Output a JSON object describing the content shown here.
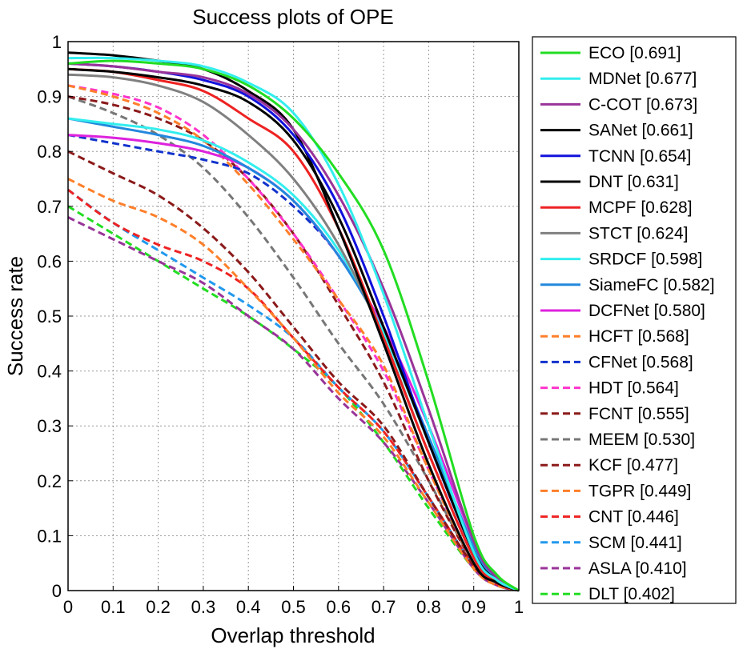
{
  "chart_data": {
    "type": "line",
    "title": "Success plots of OPE",
    "xlabel": "Overlap threshold",
    "ylabel": "Success rate",
    "xlim": [
      0,
      1
    ],
    "ylim": [
      0,
      1
    ],
    "xticks": [
      "0",
      "0.1",
      "0.2",
      "0.3",
      "0.4",
      "0.5",
      "0.6",
      "0.7",
      "0.8",
      "0.9",
      "1"
    ],
    "yticks": [
      "0",
      "0.1",
      "0.2",
      "0.3",
      "0.4",
      "0.5",
      "0.6",
      "0.7",
      "0.8",
      "0.9",
      "1"
    ],
    "grid": true,
    "legend_position": "outside-right",
    "x": [
      0,
      0.1,
      0.2,
      0.3,
      0.4,
      0.5,
      0.6,
      0.7,
      0.8,
      0.9,
      0.95,
      1.0
    ],
    "series": [
      {
        "name": "ECO [0.691]",
        "color": "#22dd22",
        "dash": "solid",
        "values": [
          0.96,
          0.965,
          0.96,
          0.95,
          0.92,
          0.86,
          0.76,
          0.62,
          0.38,
          0.1,
          0.03,
          0.0
        ]
      },
      {
        "name": "MDNet [0.677]",
        "color": "#33eeee",
        "dash": "solid",
        "values": [
          0.97,
          0.97,
          0.965,
          0.955,
          0.925,
          0.87,
          0.74,
          0.54,
          0.3,
          0.07,
          0.02,
          0.0
        ]
      },
      {
        "name": "C-COT [0.673]",
        "color": "#993399",
        "dash": "solid",
        "values": [
          0.96,
          0.955,
          0.945,
          0.935,
          0.905,
          0.84,
          0.72,
          0.55,
          0.33,
          0.09,
          0.025,
          0.0
        ]
      },
      {
        "name": "SANet [0.661]",
        "color": "#000000",
        "dash": "solid",
        "values": [
          0.95,
          0.945,
          0.935,
          0.92,
          0.89,
          0.82,
          0.68,
          0.48,
          0.27,
          0.07,
          0.02,
          0.0
        ]
      },
      {
        "name": "TCNN [0.654]",
        "color": "#1111dd",
        "dash": "solid",
        "values": [
          0.96,
          0.955,
          0.945,
          0.93,
          0.9,
          0.83,
          0.7,
          0.5,
          0.27,
          0.07,
          0.02,
          0.0
        ]
      },
      {
        "name": "DNT [0.631]",
        "color": "#000000",
        "dash": "solid",
        "values": [
          0.98,
          0.975,
          0.965,
          0.95,
          0.91,
          0.84,
          0.66,
          0.45,
          0.23,
          0.05,
          0.015,
          0.0
        ]
      },
      {
        "name": "MCPF [0.628]",
        "color": "#ee2222",
        "dash": "solid",
        "values": [
          0.95,
          0.945,
          0.93,
          0.91,
          0.86,
          0.8,
          0.66,
          0.46,
          0.25,
          0.06,
          0.015,
          0.0
        ]
      },
      {
        "name": "STCT [0.624]",
        "color": "#808080",
        "dash": "solid",
        "values": [
          0.94,
          0.935,
          0.92,
          0.89,
          0.83,
          0.75,
          0.63,
          0.46,
          0.25,
          0.06,
          0.015,
          0.0
        ]
      },
      {
        "name": "SRDCF [0.598]",
        "color": "#33eeee",
        "dash": "solid",
        "values": [
          0.86,
          0.85,
          0.84,
          0.82,
          0.78,
          0.72,
          0.62,
          0.47,
          0.27,
          0.07,
          0.02,
          0.0
        ]
      },
      {
        "name": "SiameFC [0.582]",
        "color": "#2288dd",
        "dash": "solid",
        "values": [
          0.86,
          0.845,
          0.83,
          0.81,
          0.77,
          0.71,
          0.61,
          0.47,
          0.28,
          0.08,
          0.02,
          0.0
        ]
      },
      {
        "name": "DCFNet [0.580]",
        "color": "#dd22dd",
        "dash": "solid",
        "values": [
          0.83,
          0.825,
          0.815,
          0.8,
          0.77,
          0.71,
          0.61,
          0.48,
          0.3,
          0.09,
          0.025,
          0.0
        ]
      },
      {
        "name": "HCFT [0.568]",
        "color": "#ff7f2a",
        "dash": "dashed",
        "values": [
          0.92,
          0.9,
          0.87,
          0.82,
          0.74,
          0.64,
          0.53,
          0.41,
          0.22,
          0.05,
          0.015,
          0.0
        ]
      },
      {
        "name": "CFNet [0.568]",
        "color": "#1133cc",
        "dash": "dashed",
        "values": [
          0.83,
          0.815,
          0.8,
          0.785,
          0.76,
          0.7,
          0.61,
          0.47,
          0.27,
          0.07,
          0.02,
          0.0
        ]
      },
      {
        "name": "HDT [0.564]",
        "color": "#ff33cc",
        "dash": "dashed",
        "values": [
          0.92,
          0.905,
          0.88,
          0.83,
          0.75,
          0.65,
          0.53,
          0.4,
          0.22,
          0.05,
          0.015,
          0.0
        ]
      },
      {
        "name": "FCNT [0.555]",
        "color": "#8b1a1a",
        "dash": "dashed",
        "values": [
          0.9,
          0.885,
          0.86,
          0.82,
          0.75,
          0.65,
          0.52,
          0.38,
          0.2,
          0.05,
          0.015,
          0.0
        ]
      },
      {
        "name": "MEEM [0.530]",
        "color": "#777777",
        "dash": "dashed",
        "values": [
          0.9,
          0.87,
          0.83,
          0.77,
          0.68,
          0.57,
          0.45,
          0.34,
          0.2,
          0.05,
          0.015,
          0.0
        ]
      },
      {
        "name": "KCF [0.477]",
        "color": "#8b1a1a",
        "dash": "dashed",
        "values": [
          0.8,
          0.76,
          0.72,
          0.66,
          0.58,
          0.48,
          0.38,
          0.3,
          0.17,
          0.045,
          0.015,
          0.0
        ]
      },
      {
        "name": "TGPR [0.449]",
        "color": "#ff7f2a",
        "dash": "dashed",
        "values": [
          0.75,
          0.71,
          0.68,
          0.63,
          0.55,
          0.46,
          0.36,
          0.28,
          0.16,
          0.04,
          0.01,
          0.0
        ]
      },
      {
        "name": "CNT [0.446]",
        "color": "#ee2222",
        "dash": "dashed",
        "values": [
          0.73,
          0.67,
          0.63,
          0.6,
          0.55,
          0.46,
          0.37,
          0.29,
          0.17,
          0.045,
          0.012,
          0.0
        ]
      },
      {
        "name": "SCM [0.441]",
        "color": "#2299ee",
        "dash": "dashed",
        "values": [
          0.73,
          0.67,
          0.62,
          0.57,
          0.52,
          0.46,
          0.37,
          0.29,
          0.17,
          0.045,
          0.012,
          0.0
        ]
      },
      {
        "name": "ASLA [0.410]",
        "color": "#993399",
        "dash": "dashed",
        "values": [
          0.68,
          0.64,
          0.6,
          0.56,
          0.5,
          0.44,
          0.35,
          0.27,
          0.16,
          0.04,
          0.01,
          0.0
        ]
      },
      {
        "name": "DLT [0.402]",
        "color": "#22dd22",
        "dash": "dashed",
        "values": [
          0.7,
          0.65,
          0.6,
          0.55,
          0.5,
          0.44,
          0.37,
          0.27,
          0.15,
          0.04,
          0.01,
          0.0
        ]
      }
    ]
  }
}
